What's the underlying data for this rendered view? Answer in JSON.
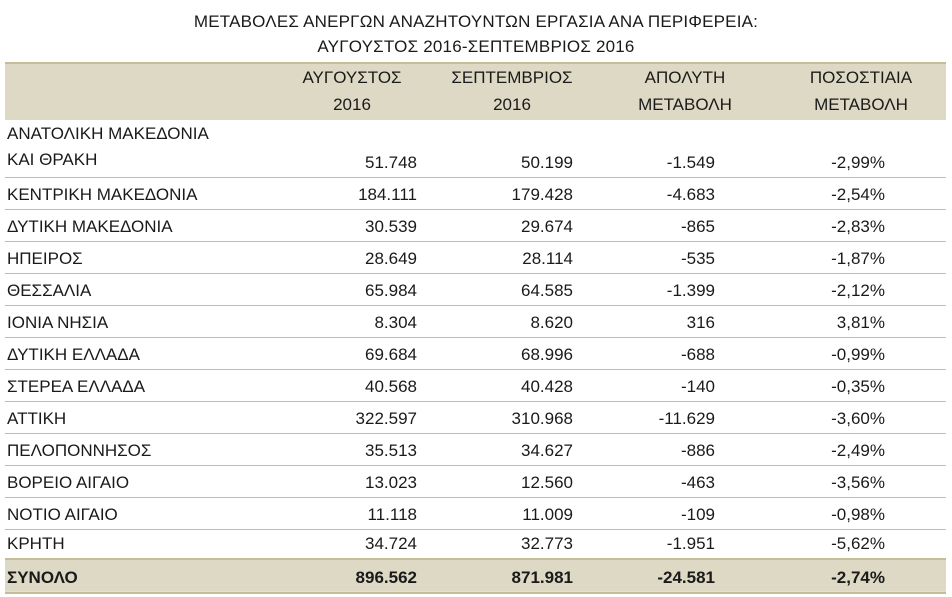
{
  "title": {
    "line1": "ΜΕΤΑΒΟΛΕΣ  ΑΝΕΡΓΩΝ ΑΝΑΖΗΤΟΥΝΤΩΝ  ΕΡΓΑΣΙΑ ΑΝΑ ΠΕΡΙΦΕΡΕΙΑ:",
    "line2": "ΑΥΓΟΥΣΤΟΣ 2016-ΣΕΠΤΕΜΒΡΙΟΣ 2016"
  },
  "headers": [
    {
      "line1": "ΑΥΓΟΥΣΤΟΣ",
      "line2": "2016"
    },
    {
      "line1": "ΣΕΠΤΕΜΒΡΙΟΣ",
      "line2": "2016"
    },
    {
      "line1": "ΑΠΟΛΥΤΗ",
      "line2": "ΜΕΤΑΒΟΛΗ"
    },
    {
      "line1": "ΠΟΣΟΣΤΙΑΙΑ",
      "line2": "ΜΕΤΑΒΟΛΗ"
    }
  ],
  "rows": [
    {
      "region_line1": "ΑΝΑΤΟΛΙΚΗ ΜΑΚΕΔΟΝΙΑ",
      "region_line2": "ΚΑΙ ΘΡΑΚΗ",
      "aug": "51.748",
      "sep": "50.199",
      "abs": "-1.549",
      "pct": "-2,99%"
    },
    {
      "region": "ΚΕΝΤΡΙΚΗ ΜΑΚΕΔΟΝΙΑ",
      "aug": "184.111",
      "sep": "179.428",
      "abs": "-4.683",
      "pct": "-2,54%"
    },
    {
      "region": "ΔΥΤΙΚΗ ΜΑΚΕΔΟΝΙΑ",
      "aug": "30.539",
      "sep": "29.674",
      "abs": "-865",
      "pct": "-2,83%"
    },
    {
      "region": "ΗΠΕΙΡΟΣ",
      "aug": "28.649",
      "sep": "28.114",
      "abs": "-535",
      "pct": "-1,87%"
    },
    {
      "region": "ΘΕΣΣΑΛΙΑ",
      "aug": "65.984",
      "sep": "64.585",
      "abs": "-1.399",
      "pct": "-2,12%"
    },
    {
      "region": "ΙΟΝΙΑ ΝΗΣΙΑ",
      "aug": "8.304",
      "sep": "8.620",
      "abs": "316",
      "pct": "3,81%"
    },
    {
      "region": "ΔΥΤΙΚΗ ΕΛΛΑΔΑ",
      "aug": "69.684",
      "sep": "68.996",
      "abs": "-688",
      "pct": "-0,99%"
    },
    {
      "region": "ΣΤΕΡΕΑ ΕΛΛΑΔΑ",
      "aug": "40.568",
      "sep": "40.428",
      "abs": "-140",
      "pct": "-0,35%"
    },
    {
      "region": "ΑΤΤΙΚΗ",
      "aug": "322.597",
      "sep": "310.968",
      "abs": "-11.629",
      "pct": "-3,60%"
    },
    {
      "region": "ΠΕΛΟΠΟΝΝΗΣΟΣ",
      "aug": "35.513",
      "sep": "34.627",
      "abs": "-886",
      "pct": "-2,49%"
    },
    {
      "region": "ΒΟΡΕΙΟ ΑΙΓΑΙΟ",
      "aug": "13.023",
      "sep": "12.560",
      "abs": "-463",
      "pct": "-3,56%"
    },
    {
      "region": "ΝΟΤΙΟ ΑΙΓΑΙΟ",
      "aug": "11.118",
      "sep": "11.009",
      "abs": "-109",
      "pct": "-0,98%"
    },
    {
      "region": "ΚΡΗΤΗ",
      "aug": "34.724",
      "sep": "32.773",
      "abs": "-1.951",
      "pct": "-5,62%"
    }
  ],
  "total": {
    "label": "ΣΥΝΟΛΟ",
    "aug": "896.562",
    "sep": "871.981",
    "abs": "-24.581",
    "pct": "-2,74%"
  },
  "colors": {
    "header_bg": "#ddd9c4",
    "rule": "#c4bd97"
  }
}
